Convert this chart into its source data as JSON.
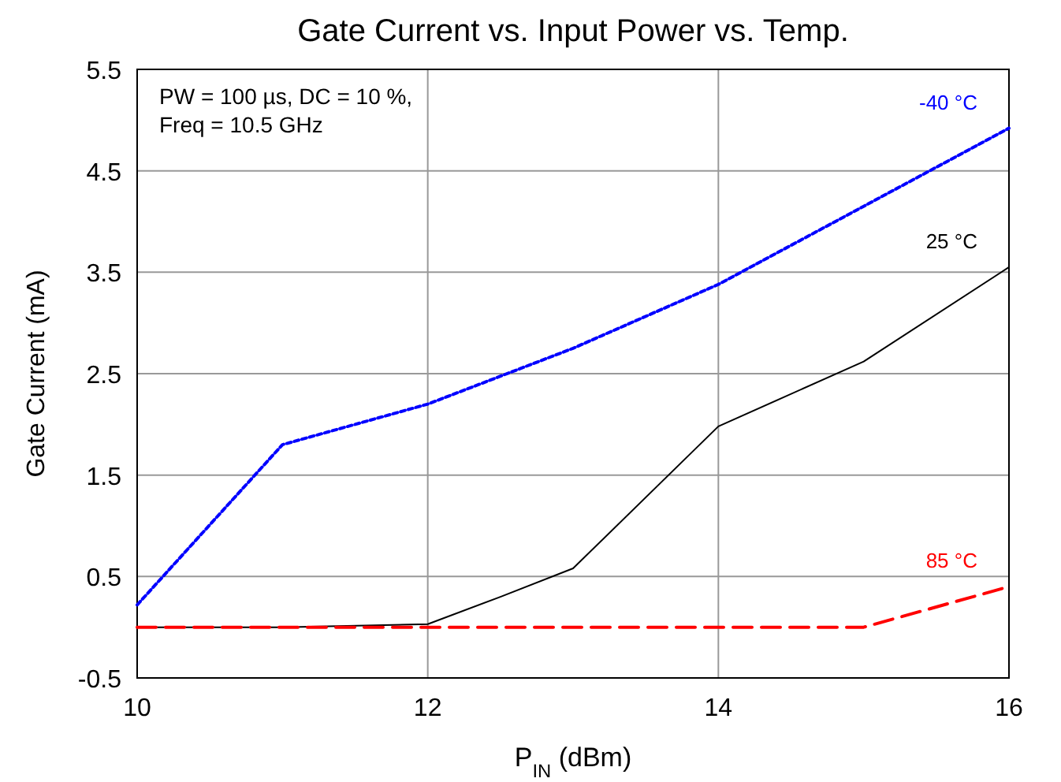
{
  "chart_data": {
    "type": "line",
    "title": "Gate Current vs. Input Power vs. Temp.",
    "xlabel": "P$_{IN}$ (dBm)",
    "ylabel": "Gate Current (mA)",
    "annotations": [
      "PW = 100 µs, DC = 10 %,\nFreq = 10.5 GHz"
    ],
    "xlim": [
      10,
      16
    ],
    "xticks": [
      10,
      12,
      14,
      16
    ],
    "ylim": [
      -0.5,
      5.5
    ],
    "yticks": [
      -0.5,
      0.5,
      1.5,
      2.5,
      3.5,
      4.5,
      5.5
    ],
    "grid": true,
    "series": [
      {
        "name": "-40 °C",
        "color": "#0000ff",
        "line_style": "dotted",
        "x": [
          10,
          11,
          12,
          13,
          14,
          15,
          16
        ],
        "values": [
          0.22,
          1.8,
          2.2,
          2.75,
          3.38,
          4.15,
          4.92
        ]
      },
      {
        "name": "25 °C",
        "color": "#000000",
        "line_style": "solid",
        "x": [
          10,
          11,
          12,
          12.5,
          13,
          14,
          15,
          16
        ],
        "values": [
          0,
          0,
          0.03,
          0.3,
          0.58,
          1.98,
          2.62,
          3.55
        ]
      },
      {
        "name": "85 °C",
        "color": "#ff0000",
        "line_style": "dashed",
        "x": [
          10,
          15,
          16
        ],
        "values": [
          0,
          0,
          0.4
        ]
      }
    ]
  }
}
